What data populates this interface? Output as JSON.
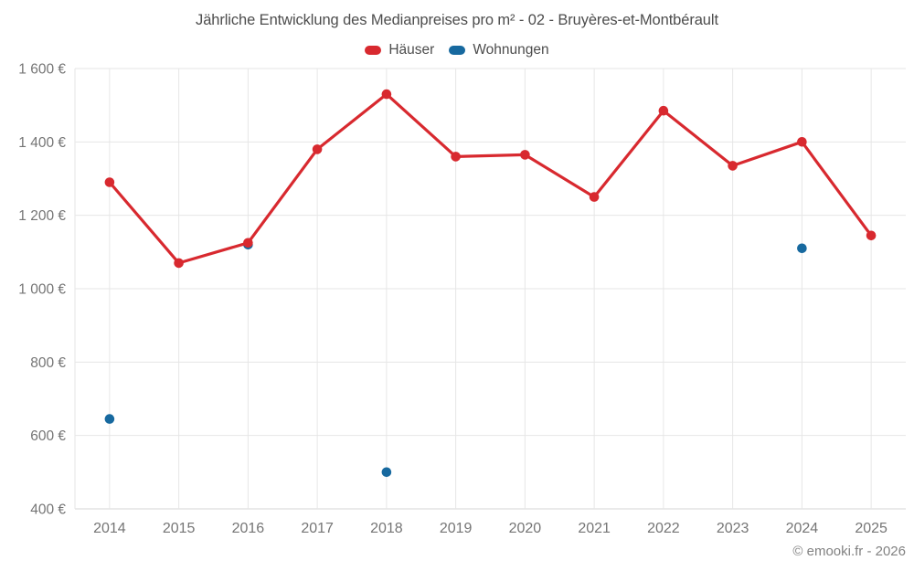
{
  "chart_data": {
    "type": "line",
    "title": "Jährliche Entwicklung des Medianpreises pro m² - 02 - Bruyères-et-Montbérault",
    "categories": [
      "2014",
      "2015",
      "2016",
      "2017",
      "2018",
      "2019",
      "2020",
      "2021",
      "2022",
      "2023",
      "2024",
      "2025"
    ],
    "series": [
      {
        "name": "Häuser",
        "color": "#d8292f",
        "values": [
          1290,
          1070,
          1125,
          1380,
          1530,
          1360,
          1365,
          1250,
          1485,
          1335,
          1400,
          1145
        ]
      },
      {
        "name": "Wohnungen",
        "color": "#17699f",
        "values": [
          645,
          null,
          1120,
          null,
          500,
          null,
          null,
          null,
          null,
          null,
          1110,
          null
        ]
      }
    ],
    "ylim": [
      400,
      1600
    ],
    "yticks": [
      {
        "value": 400,
        "label": "400 €"
      },
      {
        "value": 600,
        "label": "600 €"
      },
      {
        "value": 800,
        "label": "800 €"
      },
      {
        "value": 1000,
        "label": "1 000 €"
      },
      {
        "value": 1200,
        "label": "1 200 €"
      },
      {
        "value": 1400,
        "label": "1 400 €"
      },
      {
        "value": 1600,
        "label": "1 600 €"
      }
    ],
    "xlabel": "",
    "ylabel": "",
    "grid": true,
    "legend_position": "top"
  },
  "style": {
    "gridline_color": "#e6e6e6",
    "axis_line_color": "#d4d4d4",
    "tick_label_color": "#757575",
    "title_color": "#4d4d4d"
  },
  "footer": {
    "copyright": "© emooki.fr - 2026"
  }
}
